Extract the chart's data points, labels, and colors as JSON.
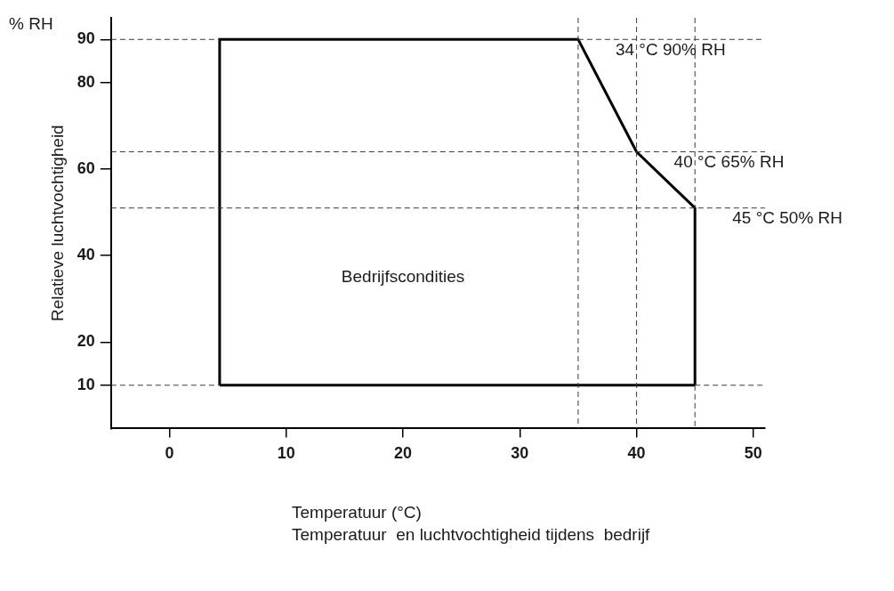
{
  "chart_data": {
    "type": "line",
    "xlabel": "Temperatuur (°C)",
    "ylabel": "Relatieve luchtvochtigheid",
    "x": [
      4.3,
      4.3,
      35,
      40,
      45,
      45
    ],
    "series": [
      {
        "color": "#000000",
        "values": [
          10,
          90,
          90,
          64,
          51,
          10
        ]
      },
      {
        "color": "#000000",
        "x": [
          4.3,
          45
        ],
        "values": [
          10,
          10
        ]
      }
    ],
    "xlim": [
      -5,
      51
    ],
    "xticks": [
      0,
      10,
      20,
      30,
      40,
      50
    ],
    "ylim": [
      0,
      95
    ],
    "yticks": [
      10,
      20,
      40,
      60,
      80,
      90
    ],
    "grid": false,
    "legend": false,
    "marker": "none",
    "line_style": "solid",
    "ref_lines": [
      {
        "axis": "y",
        "value": 90,
        "line_style": "dashed",
        "color": "#3a3a3a"
      },
      {
        "axis": "y",
        "value": 64,
        "line_style": "dashed",
        "color": "#3a3a3a"
      },
      {
        "axis": "y",
        "value": 51,
        "line_style": "dashed",
        "color": "#3a3a3a"
      },
      {
        "axis": "y",
        "value": 10,
        "line_style": "dashed",
        "color": "#3a3a3a"
      },
      {
        "axis": "x",
        "value": 35,
        "line_style": "dashed",
        "color": "#3a3a3a"
      },
      {
        "axis": "x",
        "value": 40,
        "line_style": "dashed",
        "color": "#3a3a3a"
      },
      {
        "axis": "x",
        "value": 45,
        "line_style": "dashed",
        "color": "#3a3a3a"
      }
    ],
    "annotations": [
      "% RH",
      {
        "text": "34 °C 90% RH",
        "x": 35,
        "y": 90
      },
      {
        "text": "40 °C 65% RH",
        "x": 40,
        "y": 64
      },
      {
        "text": "45 °C 50% RH",
        "x": 45,
        "y": 51
      },
      "Bedrijfscondities",
      "Temperatuur  en luchtvochtigheid tijdens  bedrijf"
    ]
  }
}
